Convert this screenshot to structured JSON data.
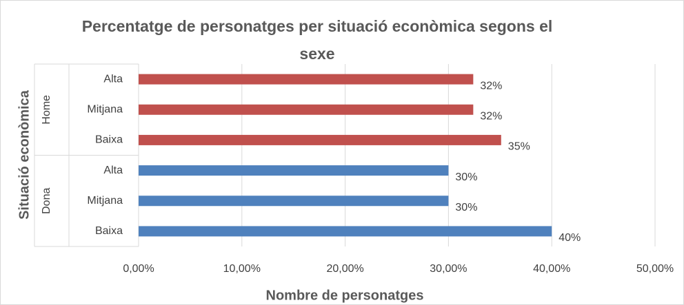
{
  "chart_data": {
    "type": "bar",
    "orientation": "horizontal",
    "title": "Percentatge de personatges per situació econòmica segons el sexe",
    "x_label": "Nombre de personatges",
    "y_label": "Situació econòmica",
    "groups": [
      {
        "name": "Home",
        "color": "#c0504d",
        "categories": [
          "Alta",
          "Mitjana",
          "Baixa"
        ],
        "values": [
          32.4,
          32.4,
          35.1
        ],
        "value_labels": [
          "32%",
          "32%",
          "35%"
        ]
      },
      {
        "name": "Dona",
        "color": "#4f81bd",
        "categories": [
          "Alta",
          "Mitjana",
          "Baixa"
        ],
        "values": [
          30,
          30,
          40
        ],
        "value_labels": [
          "30%",
          "30%",
          "40%"
        ]
      }
    ],
    "xlim": [
      0,
      50
    ],
    "xticks": [
      {
        "value": 0,
        "label": "0,00%"
      },
      {
        "value": 10,
        "label": "10,00%"
      },
      {
        "value": 20,
        "label": "20,00%"
      },
      {
        "value": 30,
        "label": "30,00%"
      },
      {
        "value": 40,
        "label": "40,00%"
      },
      {
        "value": 50,
        "label": "50,00%"
      }
    ],
    "grid": true
  }
}
